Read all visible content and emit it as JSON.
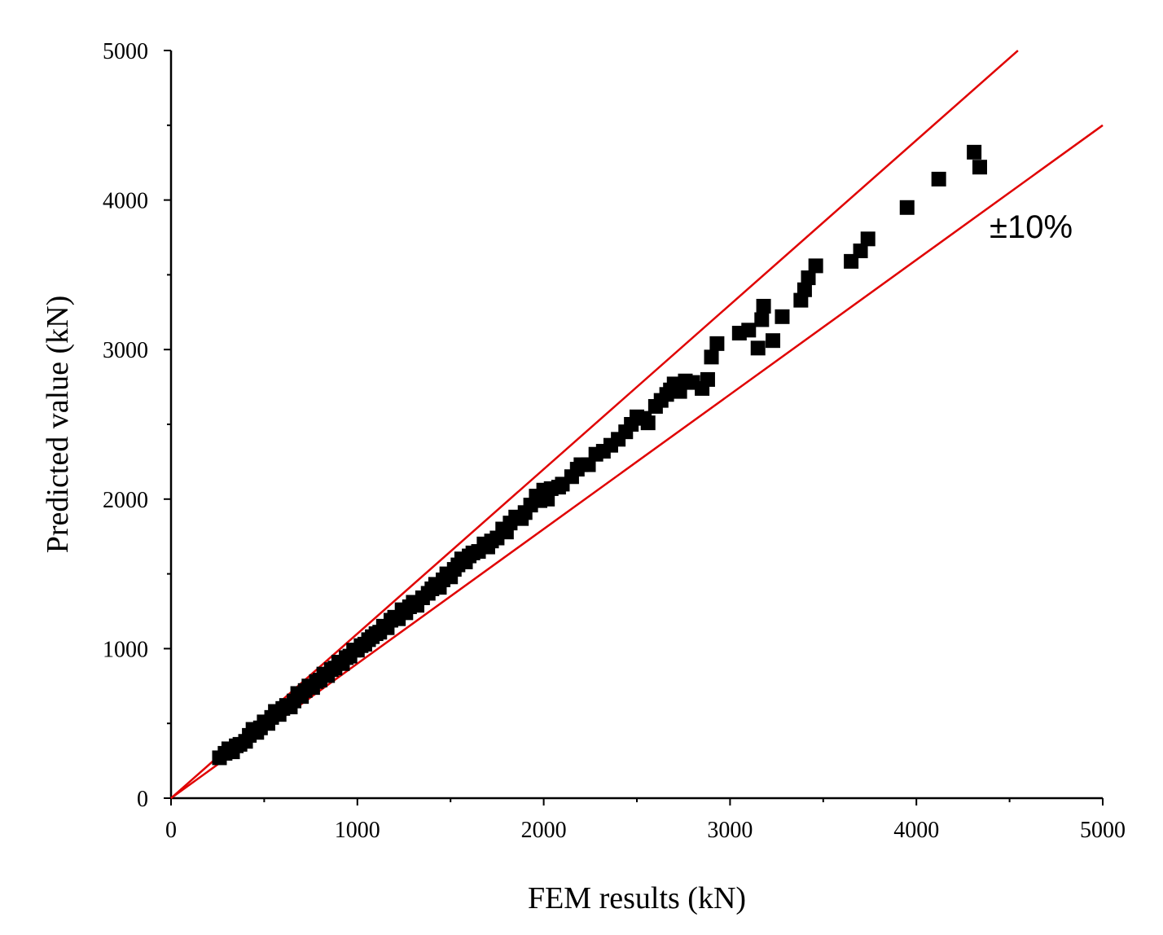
{
  "chart_data": {
    "type": "scatter",
    "xlabel": "FEM results (kN)",
    "ylabel": "Predicted value (kN)",
    "xlim": [
      0,
      5000
    ],
    "ylim": [
      0,
      5000
    ],
    "xticks": [
      "0",
      "1000",
      "2000",
      "3000",
      "4000",
      "5000"
    ],
    "yticks": [
      "0",
      "1000",
      "2000",
      "3000",
      "4000",
      "5000"
    ],
    "grid": false,
    "marker": "square",
    "marker_color": "#000000",
    "band_color": "#e00000",
    "band_lines": [
      {
        "slope": 1.1,
        "x": [
          0,
          4545
        ]
      },
      {
        "slope": 0.9,
        "x": [
          0,
          5000
        ]
      }
    ],
    "annotation": "±10%",
    "points": [
      [
        260,
        270
      ],
      [
        290,
        300
      ],
      [
        310,
        330
      ],
      [
        330,
        310
      ],
      [
        350,
        350
      ],
      [
        370,
        360
      ],
      [
        400,
        380
      ],
      [
        420,
        420
      ],
      [
        440,
        460
      ],
      [
        460,
        440
      ],
      [
        480,
        470
      ],
      [
        500,
        510
      ],
      [
        520,
        500
      ],
      [
        540,
        540
      ],
      [
        560,
        580
      ],
      [
        580,
        560
      ],
      [
        600,
        600
      ],
      [
        620,
        620
      ],
      [
        640,
        610
      ],
      [
        660,
        650
      ],
      [
        680,
        700
      ],
      [
        700,
        680
      ],
      [
        720,
        720
      ],
      [
        740,
        750
      ],
      [
        760,
        740
      ],
      [
        780,
        780
      ],
      [
        800,
        790
      ],
      [
        820,
        830
      ],
      [
        840,
        820
      ],
      [
        860,
        860
      ],
      [
        880,
        870
      ],
      [
        900,
        910
      ],
      [
        920,
        900
      ],
      [
        940,
        940
      ],
      [
        960,
        950
      ],
      [
        980,
        990
      ],
      [
        1000,
        990
      ],
      [
        1020,
        1020
      ],
      [
        1040,
        1030
      ],
      [
        1060,
        1060
      ],
      [
        1080,
        1080
      ],
      [
        1100,
        1100
      ],
      [
        1120,
        1110
      ],
      [
        1140,
        1150
      ],
      [
        1160,
        1140
      ],
      [
        1180,
        1190
      ],
      [
        1200,
        1210
      ],
      [
        1220,
        1200
      ],
      [
        1240,
        1260
      ],
      [
        1260,
        1240
      ],
      [
        1280,
        1280
      ],
      [
        1300,
        1310
      ],
      [
        1320,
        1290
      ],
      [
        1350,
        1340
      ],
      [
        1380,
        1370
      ],
      [
        1400,
        1400
      ],
      [
        1420,
        1430
      ],
      [
        1440,
        1410
      ],
      [
        1460,
        1460
      ],
      [
        1480,
        1500
      ],
      [
        1500,
        1480
      ],
      [
        1520,
        1530
      ],
      [
        1540,
        1560
      ],
      [
        1560,
        1600
      ],
      [
        1580,
        1580
      ],
      [
        1600,
        1620
      ],
      [
        1620,
        1640
      ],
      [
        1650,
        1650
      ],
      [
        1680,
        1700
      ],
      [
        1700,
        1680
      ],
      [
        1720,
        1720
      ],
      [
        1750,
        1740
      ],
      [
        1780,
        1800
      ],
      [
        1800,
        1780
      ],
      [
        1820,
        1840
      ],
      [
        1850,
        1880
      ],
      [
        1880,
        1870
      ],
      [
        1900,
        1910
      ],
      [
        1930,
        1960
      ],
      [
        1960,
        2020
      ],
      [
        1980,
        1990
      ],
      [
        2000,
        2060
      ],
      [
        2020,
        2000
      ],
      [
        2040,
        2070
      ],
      [
        2080,
        2080
      ],
      [
        2100,
        2100
      ],
      [
        2150,
        2150
      ],
      [
        2180,
        2200
      ],
      [
        2200,
        2230
      ],
      [
        2240,
        2230
      ],
      [
        2280,
        2300
      ],
      [
        2320,
        2320
      ],
      [
        2360,
        2360
      ],
      [
        2400,
        2400
      ],
      [
        2440,
        2450
      ],
      [
        2470,
        2500
      ],
      [
        2500,
        2550
      ],
      [
        2540,
        2540
      ],
      [
        2560,
        2510
      ],
      [
        2600,
        2620
      ],
      [
        2630,
        2660
      ],
      [
        2660,
        2700
      ],
      [
        2680,
        2730
      ],
      [
        2700,
        2770
      ],
      [
        2730,
        2720
      ],
      [
        2760,
        2790
      ],
      [
        2800,
        2780
      ],
      [
        2850,
        2740
      ],
      [
        2880,
        2800
      ],
      [
        2900,
        2950
      ],
      [
        2930,
        3040
      ],
      [
        3050,
        3110
      ],
      [
        3100,
        3130
      ],
      [
        3150,
        3010
      ],
      [
        3170,
        3200
      ],
      [
        3180,
        3290
      ],
      [
        3230,
        3060
      ],
      [
        3280,
        3220
      ],
      [
        3380,
        3330
      ],
      [
        3400,
        3400
      ],
      [
        3420,
        3480
      ],
      [
        3460,
        3560
      ],
      [
        3650,
        3590
      ],
      [
        3700,
        3660
      ],
      [
        3740,
        3740
      ],
      [
        3950,
        3950
      ],
      [
        4120,
        4140
      ],
      [
        4310,
        4320
      ],
      [
        4340,
        4220
      ]
    ]
  }
}
